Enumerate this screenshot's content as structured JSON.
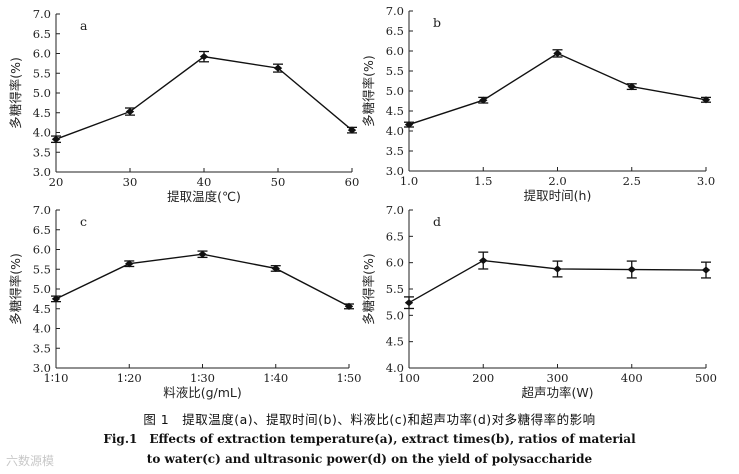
{
  "chart_data": [
    {
      "type": "line",
      "panel": "a",
      "x": [
        20,
        30,
        40,
        50,
        60
      ],
      "categories": [
        "20",
        "30",
        "40",
        "50",
        "60"
      ],
      "values": [
        3.83,
        4.53,
        5.92,
        5.63,
        4.06
      ],
      "errors": [
        0.08,
        0.09,
        0.13,
        0.1,
        0.07
      ],
      "xlim": [
        20,
        60
      ],
      "ylim": [
        3.0,
        7.0
      ],
      "yticks": [
        "3.0",
        "3.5",
        "4.0",
        "4.5",
        "5.0",
        "5.5",
        "6.0",
        "6.5",
        "7.0"
      ],
      "xlabel": "提取温度(℃)",
      "ylabel": "多糖得率(%)"
    },
    {
      "type": "line",
      "panel": "b",
      "x": [
        1.0,
        1.5,
        2.0,
        2.5,
        3.0
      ],
      "categories": [
        "1.0",
        "1.5",
        "2.0",
        "2.5",
        "3.0"
      ],
      "values": [
        4.16,
        4.77,
        5.94,
        5.11,
        4.78
      ],
      "errors": [
        0.06,
        0.07,
        0.09,
        0.07,
        0.06
      ],
      "xlim": [
        1.0,
        3.0
      ],
      "ylim": [
        3.0,
        7.0
      ],
      "yticks": [
        "3.0",
        "3.5",
        "4.0",
        "4.5",
        "5.0",
        "5.5",
        "6.0",
        "6.5",
        "7.0"
      ],
      "xlabel": "提取时间(h)",
      "ylabel": "多糖得率(%)"
    },
    {
      "type": "line",
      "panel": "c",
      "x": [
        10,
        20,
        30,
        40,
        50
      ],
      "categories": [
        "1∶10",
        "1∶20",
        "1∶30",
        "1∶40",
        "1∶50"
      ],
      "values": [
        4.75,
        5.64,
        5.88,
        5.52,
        4.56
      ],
      "errors": [
        0.07,
        0.07,
        0.08,
        0.07,
        0.06
      ],
      "xlim": [
        10,
        50
      ],
      "ylim": [
        3.0,
        7.0
      ],
      "yticks": [
        "3.0",
        "3.5",
        "4.0",
        "4.5",
        "5.0",
        "5.5",
        "6.0",
        "6.5",
        "7.0"
      ],
      "xlabel": "料液比(g/mL)",
      "ylabel": "多糖得率(%)"
    },
    {
      "type": "line",
      "panel": "d",
      "x": [
        100,
        200,
        300,
        400,
        500
      ],
      "categories": [
        "100",
        "200",
        "300",
        "400",
        "500"
      ],
      "values": [
        5.24,
        6.04,
        5.88,
        5.87,
        5.86
      ],
      "errors": [
        0.11,
        0.16,
        0.15,
        0.16,
        0.15
      ],
      "xlim": [
        100,
        500
      ],
      "ylim": [
        4.0,
        7.0
      ],
      "yticks": [
        "4.0",
        "4.5",
        "5.0",
        "5.5",
        "6.0",
        "6.5",
        "7.0"
      ],
      "xlabel": "超声功率(W)",
      "ylabel": "多糖得率(%)"
    }
  ],
  "caption": {
    "zh": "图 1　提取温度(a)、提取时间(b)、料液比(c)和超声功率(d)对多糖得率的影响",
    "en_line1": "Fig.1　Effects of extraction temperature(a), extract times(b), ratios of material",
    "en_line2": "to water(c) and ultrasonic power(d) on the yield of polysaccharide"
  },
  "watermark": "六数源模"
}
